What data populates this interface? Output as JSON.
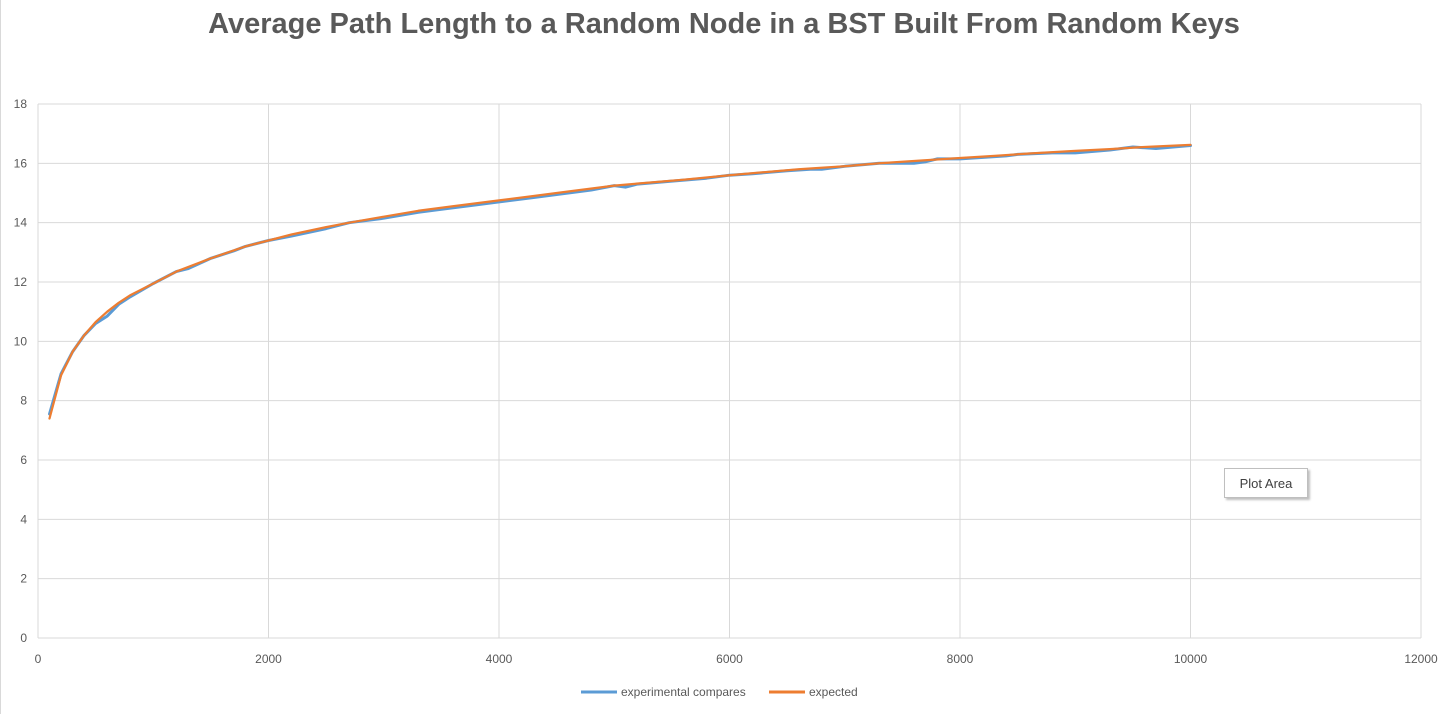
{
  "chart_data": {
    "type": "line",
    "title": "Average Path Length to a Random Node in a BST Built From Random Keys",
    "xlabel": "",
    "ylabel": "",
    "xlim": [
      0,
      12000
    ],
    "ylim": [
      0,
      18
    ],
    "x_ticks": [
      "0",
      "2000",
      "4000",
      "6000",
      "8000",
      "10000",
      "12000"
    ],
    "y_ticks": [
      "0",
      "2",
      "4",
      "6",
      "8",
      "10",
      "12",
      "14",
      "16",
      "18"
    ],
    "grid": true,
    "legend_position": "bottom",
    "series": [
      {
        "name": "experimental compares",
        "color": "#5b9bd5",
        "x": [
          100,
          200,
          300,
          400,
          500,
          600,
          700,
          800,
          1000,
          1200,
          1300,
          1500,
          1700,
          1800,
          2000,
          2200,
          2500,
          2700,
          3000,
          3300,
          3500,
          3800,
          4000,
          4300,
          4500,
          4800,
          5000,
          5100,
          5200,
          5500,
          5800,
          6000,
          6200,
          6500,
          6700,
          6800,
          7000,
          7300,
          7600,
          7700,
          7800,
          8000,
          8200,
          8400,
          8500,
          8800,
          9000,
          9300,
          9500,
          9700,
          10000
        ],
        "y": [
          7.55,
          8.9,
          9.65,
          10.2,
          10.6,
          10.85,
          11.25,
          11.5,
          11.95,
          12.35,
          12.45,
          12.8,
          13.05,
          13.2,
          13.4,
          13.55,
          13.8,
          14.0,
          14.15,
          14.35,
          14.45,
          14.6,
          14.7,
          14.85,
          14.95,
          15.1,
          15.25,
          15.2,
          15.3,
          15.4,
          15.5,
          15.6,
          15.65,
          15.75,
          15.8,
          15.8,
          15.9,
          16.0,
          16.0,
          16.05,
          16.15,
          16.15,
          16.2,
          16.25,
          16.3,
          16.35,
          16.35,
          16.45,
          16.55,
          16.5,
          16.6
        ]
      },
      {
        "name": "expected",
        "color": "#ed7d31",
        "x": [
          100,
          200,
          300,
          400,
          500,
          600,
          700,
          800,
          1000,
          1200,
          1500,
          1800,
          2000,
          2200,
          2500,
          2700,
          3000,
          3300,
          3600,
          4000,
          4300,
          4600,
          5000,
          5300,
          5600,
          6000,
          6300,
          6600,
          7000,
          7300,
          7600,
          8000,
          8300,
          8600,
          9000,
          9300,
          9600,
          10000
        ],
        "y": [
          7.4,
          8.85,
          9.65,
          10.2,
          10.65,
          11.0,
          11.3,
          11.55,
          11.95,
          12.35,
          12.8,
          13.2,
          13.4,
          13.6,
          13.85,
          14.0,
          14.2,
          14.4,
          14.55,
          14.75,
          14.9,
          15.05,
          15.25,
          15.35,
          15.45,
          15.6,
          15.7,
          15.8,
          15.9,
          16.0,
          16.08,
          16.18,
          16.25,
          16.33,
          16.42,
          16.48,
          16.55,
          16.62
        ]
      }
    ]
  },
  "tooltip": {
    "label": "Plot Area"
  },
  "colors": {
    "title": "#595959",
    "axis_text": "#595959",
    "grid": "#d9d9d9"
  }
}
